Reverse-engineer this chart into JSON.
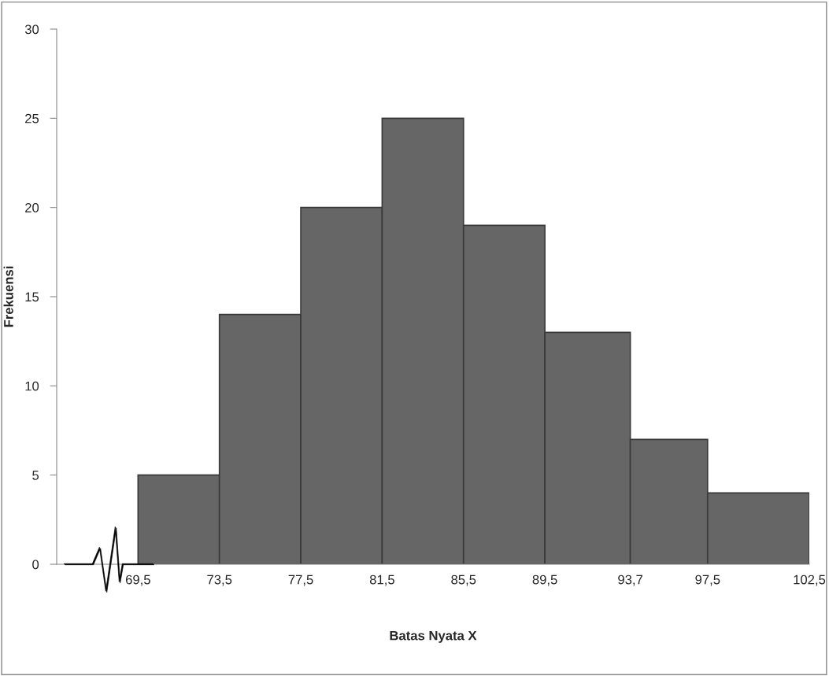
{
  "chart_data": {
    "type": "histogram",
    "xlabel": "Batas Nyata X",
    "ylabel": "Frekuensi",
    "bins": [
      69.5,
      73.5,
      77.5,
      81.5,
      85.5,
      89.5,
      93.7,
      97.5,
      102.5
    ],
    "values": [
      5,
      14,
      20,
      25,
      19,
      13,
      7,
      4
    ],
    "color": "#666666",
    "xlim": [
      65.5,
      102.5
    ],
    "xticks": [
      {
        "value": 69.5,
        "label": "69,5"
      },
      {
        "value": 73.5,
        "label": "73,5"
      },
      {
        "value": 77.5,
        "label": "77,5"
      },
      {
        "value": 81.5,
        "label": "81,5"
      },
      {
        "value": 85.5,
        "label": "85,5"
      },
      {
        "value": 89.5,
        "label": "89,5"
      },
      {
        "value": 93.7,
        "label": "93,7"
      },
      {
        "value": 97.5,
        "label": "97,5"
      },
      {
        "value": 102.5,
        "label": "102,5"
      }
    ],
    "ylim": [
      0,
      30
    ],
    "yticks": [
      0,
      5,
      10,
      15,
      20,
      25,
      30
    ],
    "grid": false
  }
}
